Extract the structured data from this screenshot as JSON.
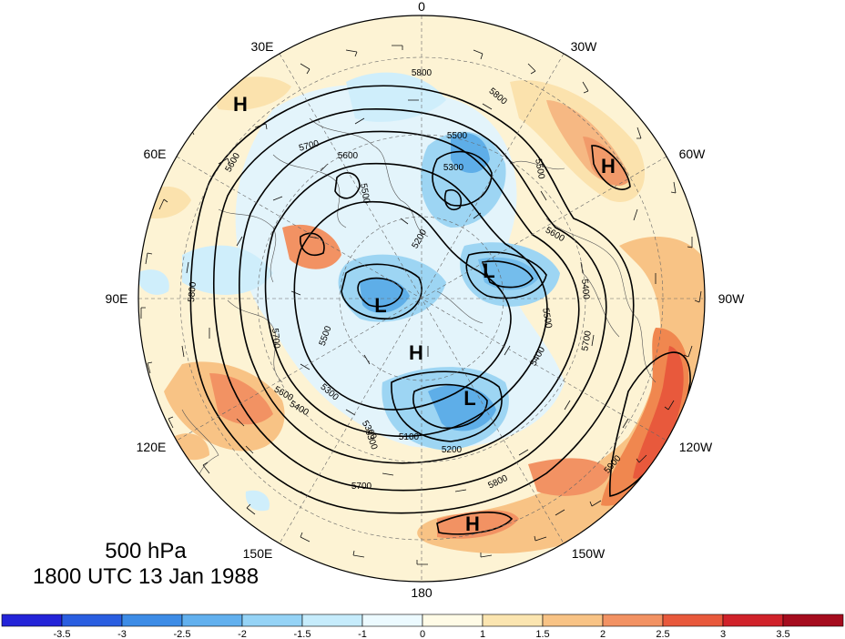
{
  "title": {
    "level": "500 hPa",
    "time": "1800 UTC 13 Jan 1988"
  },
  "longitude_labels": [
    "0",
    "30W",
    "60W",
    "90W",
    "120W",
    "150W",
    "180",
    "150E",
    "120E",
    "90E",
    "60E",
    "30E"
  ],
  "contour_labels": [
    "5800",
    "5800",
    "5700",
    "5600",
    "5500",
    "5300",
    "5600",
    "5500",
    "5400",
    "5700",
    "5500",
    "5400",
    "5300",
    "5200",
    "5100",
    "5200",
    "5300",
    "5400",
    "5600",
    "5700",
    "5800",
    "5900",
    "5700",
    "5800",
    "5500",
    "5300",
    "5600",
    "5500"
  ],
  "pressure_centers": [
    "H",
    "H",
    "L",
    "L",
    "H",
    "L",
    "H"
  ],
  "colorbar": {
    "tick_labels": [
      "-3.5",
      "-3",
      "-2.5",
      "-2",
      "-1.5",
      "-1",
      "0",
      "1",
      "1.5",
      "2",
      "2.5",
      "3",
      "3.5"
    ],
    "colors": [
      "#2424d8",
      "#2a5ee0",
      "#3d8ce6",
      "#62b0ee",
      "#95d3f6",
      "#c6ecfc",
      "#ecfaff",
      "#fffbe6",
      "#fbe5b0",
      "#f8c385",
      "#f29263",
      "#e8593c",
      "#d0222a",
      "#a50c1e"
    ]
  }
}
